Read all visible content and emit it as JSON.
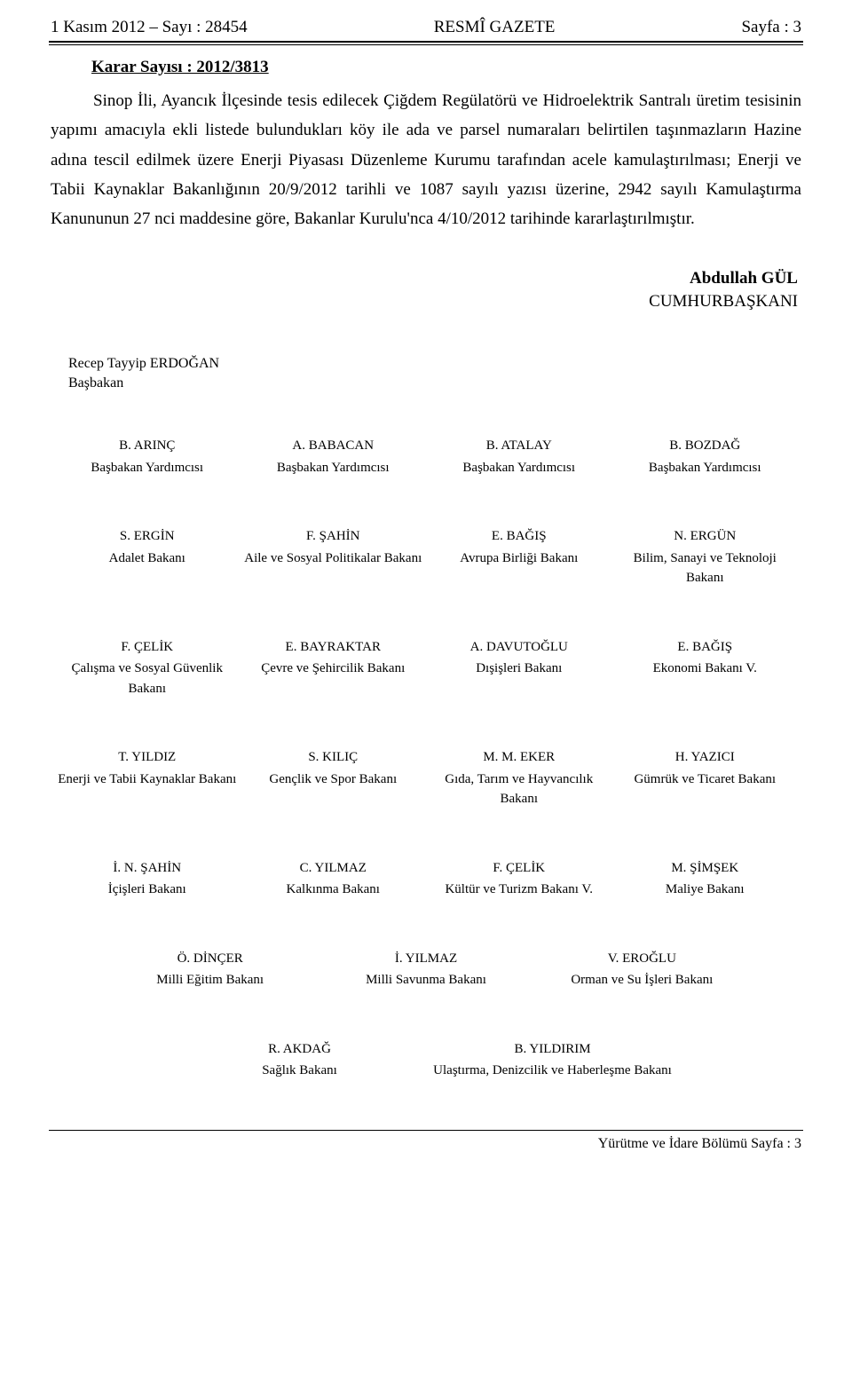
{
  "header": {
    "left": "1 Kasım 2012 – Sayı : 28454",
    "center": "RESMÎ GAZETE",
    "right": "Sayfa : 3"
  },
  "karar": "Karar Sayısı : 2012/3813",
  "body": "Sinop İli, Ayancık İlçesinde tesis edilecek Çiğdem Regülatörü ve Hidroelektrik Santralı üretim tesisinin yapımı amacıyla ekli listede bulundukları köy ile ada ve parsel numaraları belirtilen taşınmazların Hazine adına tescil edilmek üzere Enerji Piyasası Düzenleme Kurumu tarafından acele kamulaştırılması; Enerji ve Tabii Kaynaklar Bakanlığının 20/9/2012 tarihli ve 1087 sayılı yazısı üzerine, 2942 sayılı Kamulaştırma Kanununun 27 nci maddesine göre, Bakanlar Kurulu'nca 4/10/2012 tarihinde kararlaştırılmıştır.",
  "president": {
    "name": "Abdullah GÜL",
    "title": "CUMHURBAŞKANI"
  },
  "pm": {
    "name": "Recep Tayyip ERDOĞAN",
    "title": "Başbakan"
  },
  "rows4": [
    [
      {
        "n": "B. ARINÇ",
        "t": "Başbakan Yardımcısı"
      },
      {
        "n": "A. BABACAN",
        "t": "Başbakan Yardımcısı"
      },
      {
        "n": "B. ATALAY",
        "t": "Başbakan Yardımcısı"
      },
      {
        "n": "B. BOZDAĞ",
        "t": "Başbakan Yardımcısı"
      }
    ],
    [
      {
        "n": "S. ERGİN",
        "t": "Adalet Bakanı"
      },
      {
        "n": "F. ŞAHİN",
        "t": "Aile ve Sosyal Politikalar Bakanı"
      },
      {
        "n": "E. BAĞIŞ",
        "t": "Avrupa Birliği Bakanı"
      },
      {
        "n": "N. ERGÜN",
        "t": "Bilim, Sanayi ve Teknoloji Bakanı"
      }
    ],
    [
      {
        "n": "F. ÇELİK",
        "t": "Çalışma ve Sosyal Güvenlik Bakanı"
      },
      {
        "n": "E. BAYRAKTAR",
        "t": "Çevre ve Şehircilik Bakanı"
      },
      {
        "n": "A. DAVUTOĞLU",
        "t": "Dışişleri Bakanı"
      },
      {
        "n": "E. BAĞIŞ",
        "t": "Ekonomi Bakanı V."
      }
    ],
    [
      {
        "n": "T. YILDIZ",
        "t": "Enerji ve Tabii Kaynaklar Bakanı"
      },
      {
        "n": "S. KILIÇ",
        "t": "Gençlik ve Spor Bakanı"
      },
      {
        "n": "M. M. EKER",
        "t": "Gıda, Tarım ve Hayvancılık Bakanı"
      },
      {
        "n": "H. YAZICI",
        "t": "Gümrük ve Ticaret Bakanı"
      }
    ],
    [
      {
        "n": "İ. N. ŞAHİN",
        "t": "İçişleri Bakanı"
      },
      {
        "n": "C. YILMAZ",
        "t": "Kalkınma Bakanı"
      },
      {
        "n": "F. ÇELİK",
        "t": "Kültür ve Turizm Bakanı V."
      },
      {
        "n": "M. ŞİMŞEK",
        "t": "Maliye Bakanı"
      }
    ]
  ],
  "row3": [
    {
      "n": "Ö. DİNÇER",
      "t": "Milli Eğitim Bakanı"
    },
    {
      "n": "İ. YILMAZ",
      "t": "Milli Savunma Bakanı"
    },
    {
      "n": "V. EROĞLU",
      "t": "Orman ve Su İşleri Bakanı"
    }
  ],
  "row2": [
    {
      "n": "R. AKDAĞ",
      "t": "Sağlık Bakanı"
    },
    {
      "n": "B. YILDIRIM",
      "t": "Ulaştırma, Denizcilik ve Haberleşme Bakanı"
    }
  ],
  "footer": "Yürütme ve İdare Bölümü Sayfa : 3"
}
